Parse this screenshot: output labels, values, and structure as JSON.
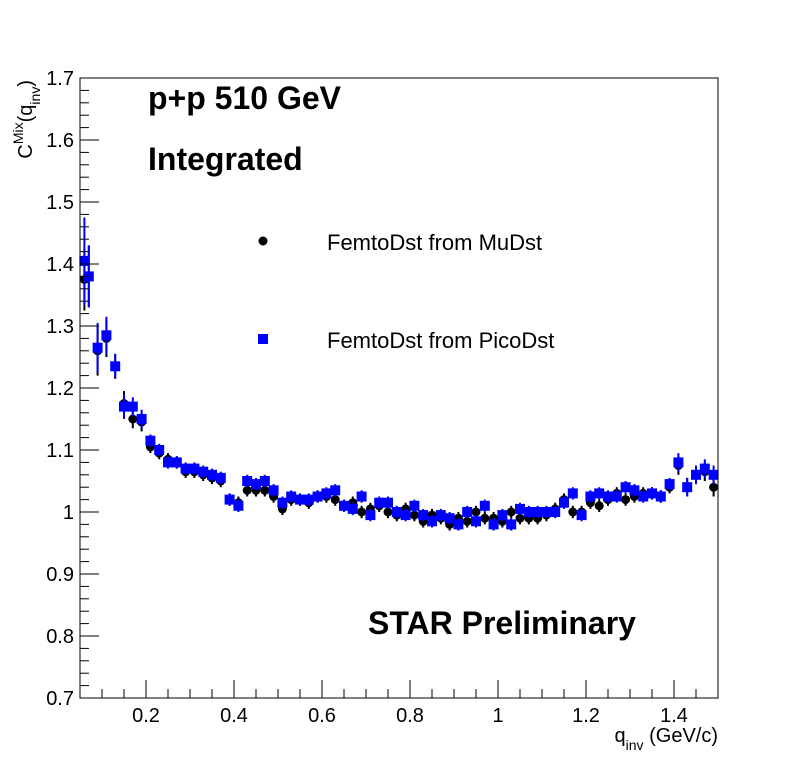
{
  "chart_data": {
    "type": "scatter",
    "title": "",
    "xlabel": "q_inv (GeV/c)",
    "ylabel": "C^Mix(q_inv)",
    "xlabel_parts": {
      "main": "q",
      "sub": "inv",
      "unit": " (GeV/c)"
    },
    "ylabel_parts": {
      "main": "C",
      "sup": "Mix",
      "open": "(q",
      "sub": "inv",
      "close": ")"
    },
    "xlim": [
      0.05,
      1.5
    ],
    "ylim": [
      0.7,
      1.7
    ],
    "x_ticks": [
      0.2,
      0.4,
      0.6,
      0.8,
      1.0,
      1.2,
      1.4
    ],
    "x_tick_labels": [
      "0.2",
      "0.4",
      "0.6",
      "0.8",
      "1",
      "1.2",
      "1.4"
    ],
    "y_ticks": [
      0.7,
      0.8,
      0.9,
      1.0,
      1.1,
      1.2,
      1.3,
      1.4,
      1.5,
      1.6,
      1.7
    ],
    "y_tick_labels": [
      "0.7",
      "0.8",
      "0.9",
      "1",
      "1.1",
      "1.2",
      "1.3",
      "1.4",
      "1.5",
      "1.6",
      "1.7"
    ],
    "grid": false,
    "annotations": {
      "system": "p+p 510 GeV",
      "integrated": "Integrated",
      "preliminary": "STAR Preliminary"
    },
    "series": [
      {
        "name": "FemtoDst from MuDst",
        "color": "#000000",
        "marker": "circle",
        "x": [
          0.06,
          0.07,
          0.09,
          0.11,
          0.13,
          0.15,
          0.17,
          0.19,
          0.21,
          0.23,
          0.25,
          0.27,
          0.29,
          0.31,
          0.33,
          0.35,
          0.37,
          0.39,
          0.41,
          0.43,
          0.45,
          0.47,
          0.49,
          0.51,
          0.53,
          0.55,
          0.57,
          0.59,
          0.61,
          0.63,
          0.65,
          0.67,
          0.69,
          0.71,
          0.73,
          0.75,
          0.77,
          0.79,
          0.81,
          0.83,
          0.85,
          0.87,
          0.89,
          0.91,
          0.93,
          0.95,
          0.97,
          0.99,
          1.01,
          1.03,
          1.05,
          1.07,
          1.09,
          1.11,
          1.13,
          1.15,
          1.17,
          1.19,
          1.21,
          1.23,
          1.25,
          1.27,
          1.29,
          1.31,
          1.33,
          1.35,
          1.37,
          1.39,
          1.41,
          1.43,
          1.45,
          1.47,
          1.49
        ],
        "y": [
          1.375,
          1.38,
          1.26,
          1.28,
          1.235,
          1.175,
          1.15,
          1.145,
          1.105,
          1.095,
          1.085,
          1.08,
          1.065,
          1.065,
          1.06,
          1.055,
          1.05,
          1.02,
          1.015,
          1.035,
          1.035,
          1.035,
          1.025,
          1.005,
          1.02,
          1.02,
          1.015,
          1.025,
          1.025,
          1.02,
          1.01,
          1.015,
          1.0,
          1.005,
          1.01,
          1.0,
          0.995,
          1.005,
          0.995,
          0.985,
          0.995,
          0.99,
          0.98,
          0.99,
          0.985,
          1.0,
          0.99,
          0.99,
          0.985,
          1.0,
          0.99,
          0.99,
          0.99,
          0.995,
          1.005,
          1.02,
          1.0,
          1.0,
          1.015,
          1.01,
          1.02,
          1.03,
          1.02,
          1.025,
          1.03,
          1.03,
          1.025,
          1.04,
          1.075,
          1.04,
          1.06,
          1.065,
          1.04
        ],
        "err": [
          0.05,
          0.05,
          0.04,
          0.03,
          0.02,
          0.02,
          0.015,
          0.015,
          0.01,
          0.01,
          0.01,
          0.01,
          0.01,
          0.01,
          0.01,
          0.01,
          0.01,
          0.01,
          0.01,
          0.01,
          0.01,
          0.01,
          0.01,
          0.01,
          0.01,
          0.01,
          0.01,
          0.01,
          0.01,
          0.01,
          0.01,
          0.01,
          0.01,
          0.01,
          0.01,
          0.01,
          0.01,
          0.01,
          0.01,
          0.01,
          0.01,
          0.01,
          0.01,
          0.01,
          0.01,
          0.01,
          0.01,
          0.01,
          0.01,
          0.01,
          0.01,
          0.01,
          0.01,
          0.01,
          0.01,
          0.01,
          0.01,
          0.01,
          0.01,
          0.01,
          0.01,
          0.01,
          0.01,
          0.01,
          0.01,
          0.01,
          0.01,
          0.01,
          0.015,
          0.015,
          0.015,
          0.015,
          0.015
        ]
      },
      {
        "name": "FemtoDst from PicoDst",
        "color": "#0000ff",
        "marker": "square",
        "x": [
          0.06,
          0.07,
          0.09,
          0.11,
          0.13,
          0.15,
          0.17,
          0.19,
          0.21,
          0.23,
          0.25,
          0.27,
          0.29,
          0.31,
          0.33,
          0.35,
          0.37,
          0.39,
          0.41,
          0.43,
          0.45,
          0.47,
          0.49,
          0.51,
          0.53,
          0.55,
          0.57,
          0.59,
          0.61,
          0.63,
          0.65,
          0.67,
          0.69,
          0.71,
          0.73,
          0.75,
          0.77,
          0.79,
          0.81,
          0.83,
          0.85,
          0.87,
          0.89,
          0.91,
          0.93,
          0.95,
          0.97,
          0.99,
          1.01,
          1.03,
          1.05,
          1.07,
          1.09,
          1.11,
          1.13,
          1.15,
          1.17,
          1.19,
          1.21,
          1.23,
          1.25,
          1.27,
          1.29,
          1.31,
          1.33,
          1.35,
          1.37,
          1.39,
          1.41,
          1.43,
          1.45,
          1.47,
          1.49
        ],
        "y": [
          1.405,
          1.38,
          1.265,
          1.285,
          1.235,
          1.17,
          1.17,
          1.15,
          1.115,
          1.1,
          1.08,
          1.08,
          1.07,
          1.07,
          1.065,
          1.06,
          1.055,
          1.02,
          1.01,
          1.05,
          1.045,
          1.05,
          1.035,
          1.015,
          1.025,
          1.02,
          1.02,
          1.025,
          1.03,
          1.035,
          1.01,
          1.005,
          1.025,
          0.995,
          1.015,
          1.015,
          1.0,
          0.995,
          1.01,
          0.995,
          0.985,
          0.995,
          0.99,
          0.98,
          1.0,
          0.985,
          1.01,
          0.98,
          0.995,
          0.98,
          1.005,
          1.0,
          1.0,
          1.0,
          1.0,
          1.015,
          1.03,
          0.995,
          1.025,
          1.03,
          1.025,
          1.025,
          1.04,
          1.035,
          1.025,
          1.03,
          1.025,
          1.045,
          1.08,
          1.04,
          1.06,
          1.07,
          1.06
        ],
        "err": [
          0.07,
          0.05,
          0.04,
          0.03,
          0.02,
          0.02,
          0.015,
          0.015,
          0.01,
          0.01,
          0.01,
          0.01,
          0.01,
          0.01,
          0.01,
          0.01,
          0.01,
          0.01,
          0.01,
          0.01,
          0.01,
          0.01,
          0.01,
          0.01,
          0.01,
          0.01,
          0.01,
          0.01,
          0.01,
          0.01,
          0.01,
          0.01,
          0.01,
          0.01,
          0.01,
          0.01,
          0.01,
          0.01,
          0.01,
          0.01,
          0.01,
          0.01,
          0.01,
          0.01,
          0.01,
          0.01,
          0.01,
          0.01,
          0.01,
          0.01,
          0.01,
          0.01,
          0.01,
          0.01,
          0.01,
          0.01,
          0.01,
          0.01,
          0.01,
          0.01,
          0.01,
          0.01,
          0.01,
          0.01,
          0.01,
          0.01,
          0.01,
          0.01,
          0.015,
          0.015,
          0.015,
          0.015,
          0.015
        ]
      }
    ]
  }
}
